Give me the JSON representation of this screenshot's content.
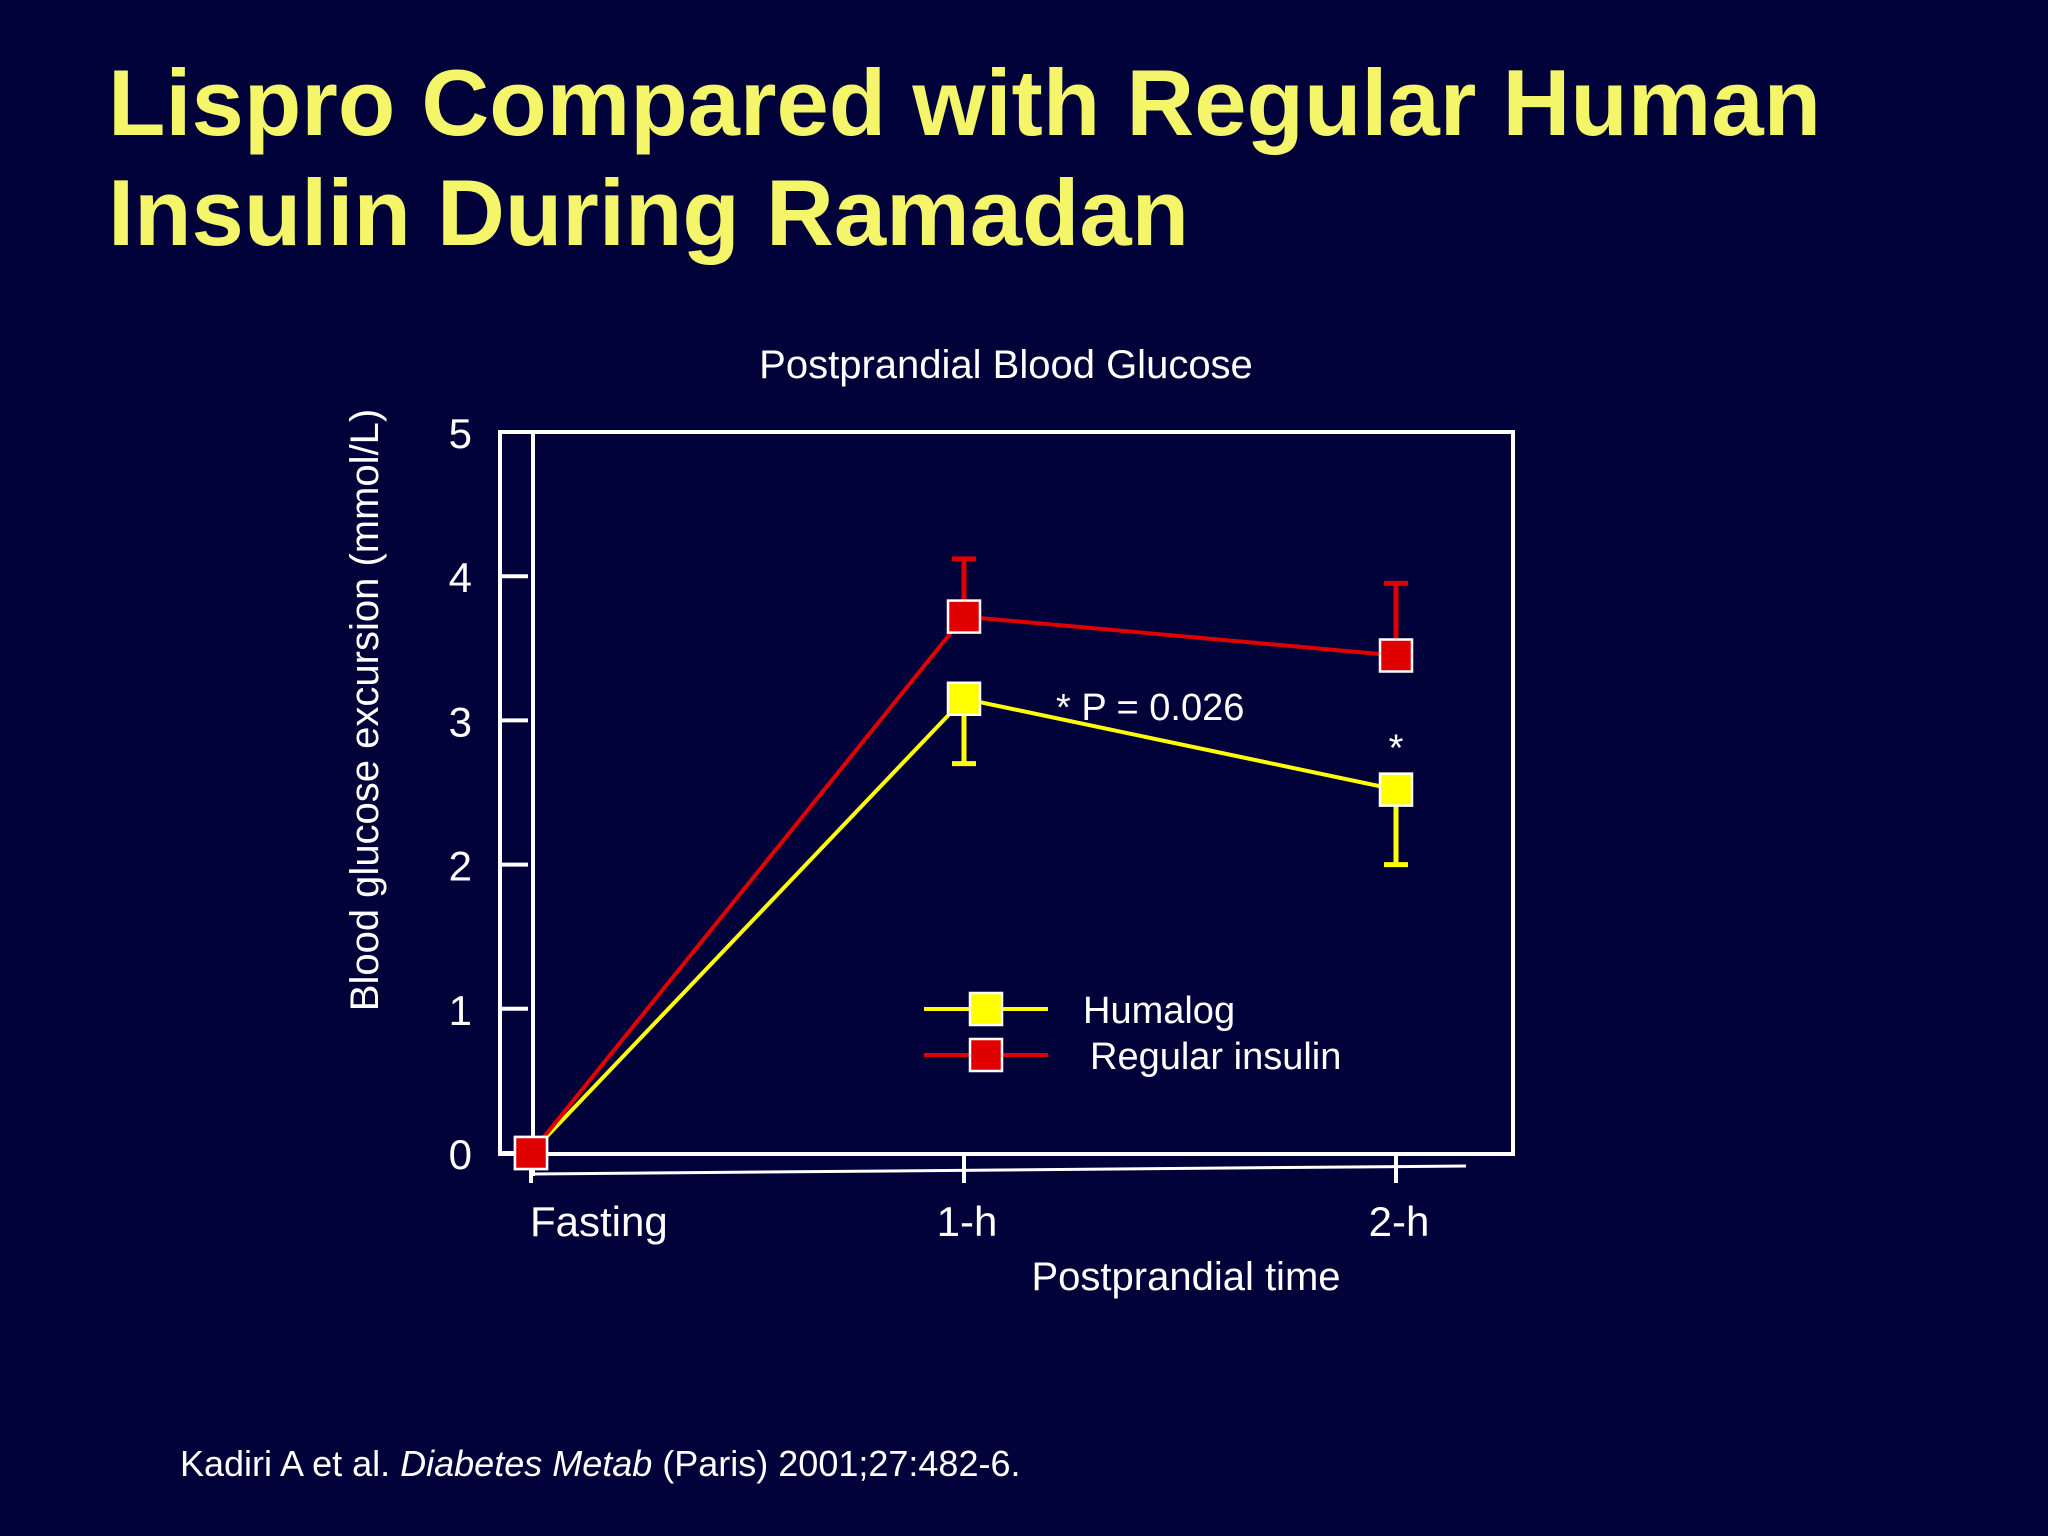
{
  "slide": {
    "title_line1": "Lispro Compared with Regular Human",
    "title_line2": "Insulin During Ramadan",
    "citation": {
      "authors": "Kadiri A et al. ",
      "journal": "Diabetes Metab",
      "rest": " (Paris) 2001;27:482-6."
    }
  },
  "colors": {
    "background": "#02023a",
    "title": "#f5f56a",
    "humalog": "#ffff00",
    "regular": "#e00000",
    "axis": "#ffffff"
  },
  "chart_data": {
    "type": "line",
    "title": "Postprandial Blood Glucose",
    "xlabel": "Postprandial time",
    "ylabel": "Blood glucose excursion (mmol/L)",
    "categories": [
      "Fasting",
      "1-h",
      "2-h"
    ],
    "ylim": [
      0,
      5
    ],
    "yticks": [
      "0",
      "1",
      "2",
      "3",
      "4",
      "5"
    ],
    "grid": false,
    "legend_position": "bottom-right",
    "series": [
      {
        "name": "Humalog",
        "color": "#ffff00",
        "values": [
          0,
          3.15,
          2.52
        ],
        "error_bars": [
          null,
          {
            "dir": "down",
            "value": 2.7
          },
          {
            "dir": "down",
            "value": 2.0
          }
        ]
      },
      {
        "name": "Regular insulin",
        "color": "#e00000",
        "values": [
          0,
          3.72,
          3.45
        ],
        "error_bars": [
          null,
          {
            "dir": "up",
            "value": 4.12
          },
          {
            "dir": "up",
            "value": 3.95
          }
        ]
      }
    ],
    "annotations": [
      {
        "text": "*  P = 0.026",
        "category": "1-h",
        "y": 3.1,
        "offset_category": 0.43
      },
      {
        "text": "*",
        "category": "2-h",
        "y": 2.82
      }
    ]
  }
}
